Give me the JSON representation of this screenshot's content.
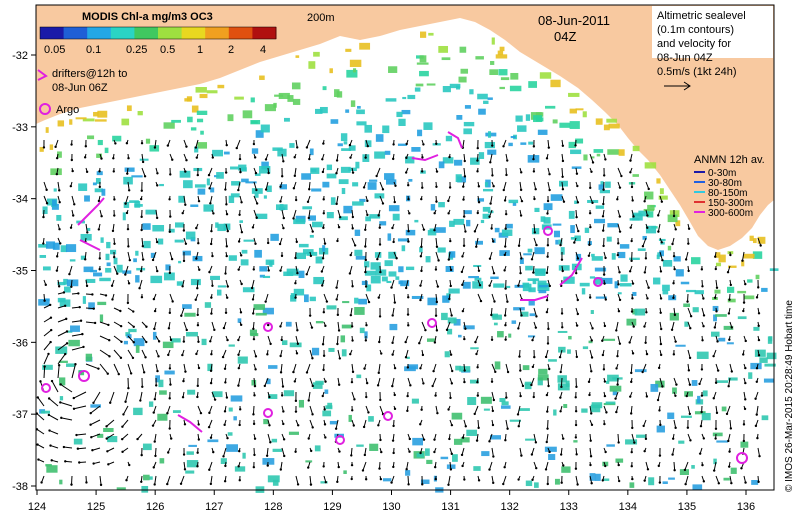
{
  "map": {
    "date": "08-Jun-2011",
    "time": "04Z",
    "contour_label": "200m",
    "colors": {
      "land": "#f8c9a0",
      "ocean": "#ffffff",
      "argo": "#e020e0",
      "drifter": "#e020e0"
    },
    "lon_ticks": [
      "124",
      "125",
      "126",
      "127",
      "128",
      "129",
      "130",
      "131",
      "132",
      "133",
      "134",
      "135",
      "136"
    ],
    "lat_ticks": [
      "-32",
      "-33",
      "-34",
      "-35",
      "-36",
      "-37",
      "-38"
    ]
  },
  "colorbar": {
    "title": "MODIS Chl-a mg/m3 OC3",
    "ticks": [
      "0.05",
      "0.1",
      "0.25",
      "0.5",
      "1",
      "2",
      "4"
    ],
    "colors": [
      "#1a1aa8",
      "#1f5fd6",
      "#23a7e6",
      "#2ad4c4",
      "#40c860",
      "#9ee040",
      "#e8d820",
      "#f0a020",
      "#e05010",
      "#b01010"
    ]
  },
  "legend_drifters": {
    "line1": "drifters@12h to",
    "line2": "08-Jun 06Z",
    "argo_label": "Argo"
  },
  "legend_altimetry": {
    "line1": "Altimetric sealevel",
    "line2": "(0.1m contours)",
    "line3": "and velocity for",
    "line4": "08-Jun 04Z",
    "scale": "0.5m/s (1kt 24h)"
  },
  "legend_anmn": {
    "title": "ANMN 12h av.",
    "items": [
      {
        "label": "0-30m",
        "color": "#1a1aa8"
      },
      {
        "label": "30-80m",
        "color": "#2060e0"
      },
      {
        "label": "80-150m",
        "color": "#30c8e0"
      },
      {
        "label": "150-300m",
        "color": "#e03030"
      },
      {
        "label": "300-600m",
        "color": "#e020e0"
      }
    ]
  },
  "credit": "© IMOS 26-Mar-2015 20:28:49 Hobart time"
}
